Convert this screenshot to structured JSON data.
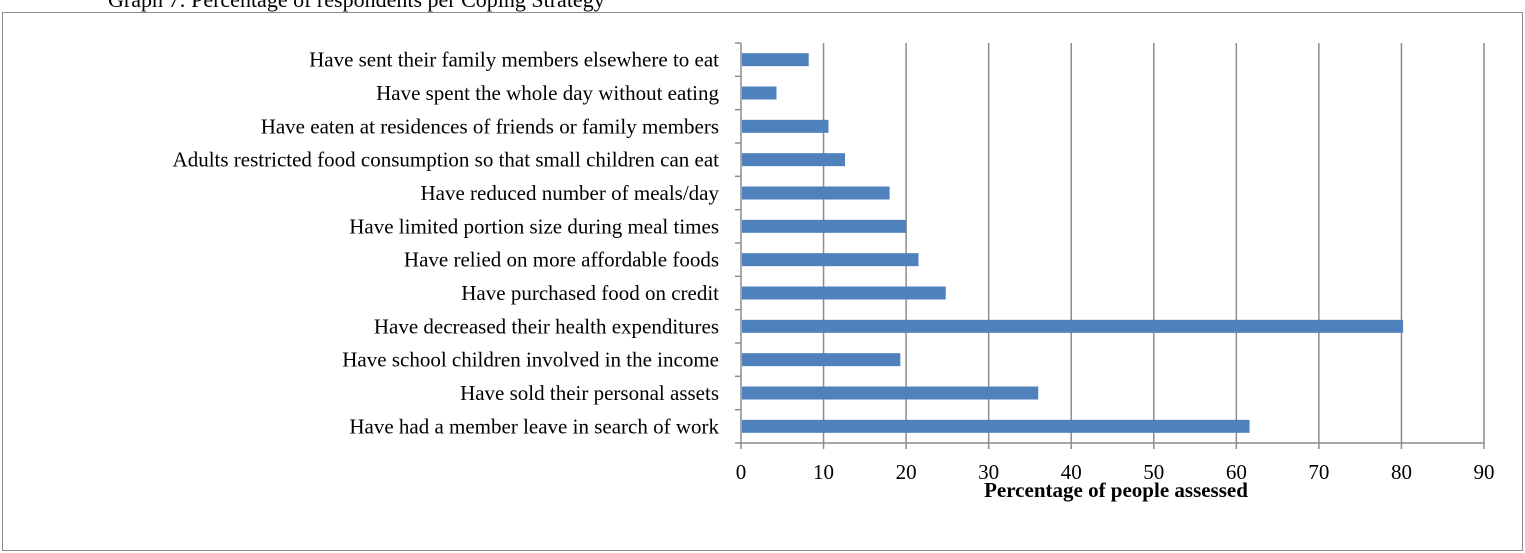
{
  "title": "Graph 7: Percentage of respondents per Coping Strategy",
  "chart_data": {
    "type": "bar",
    "orientation": "horizontal",
    "title": "Graph 7: Percentage of respondents per Coping Strategy",
    "xlabel": "Percentage of people assessed",
    "ylabel": "",
    "xlim": [
      0,
      90
    ],
    "xticks": [
      "0",
      "10",
      "20",
      "30",
      "40",
      "50",
      "60",
      "70",
      "80",
      "90"
    ],
    "grid": "vertical",
    "legend": "none",
    "bar_color": "#4f81bd",
    "categories": [
      "Have sent their family members elsewhere to eat",
      "Have spent the whole day without eating",
      "Have eaten at residences of friends or family members",
      "Adults restricted food consumption so that small children can eat",
      "Have reduced number of meals/day",
      "Have limited portion size during meal times",
      "Have relied on more affordable foods",
      "Have purchased food on credit",
      "Have decreased their health expenditures",
      "Have school children involved in the income",
      "Have sold their personal assets",
      "Have had a member leave in search of work"
    ],
    "values": [
      8.2,
      4.3,
      10.6,
      12.6,
      18.0,
      20.0,
      21.5,
      24.8,
      80.2,
      19.3,
      36.0,
      61.6
    ]
  }
}
